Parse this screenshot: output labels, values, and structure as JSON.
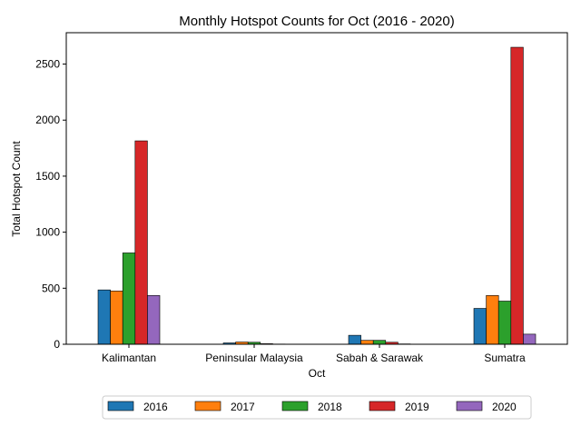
{
  "chart_data": {
    "type": "bar",
    "title": "Monthly Hotspot Counts for Oct (2016 - 2020)",
    "xlabel": "Oct",
    "ylabel": "Total Hotspot Count",
    "categories": [
      "Kalimantan",
      "Peninsular Malaysia",
      "Sabah & Sarawak",
      "Sumatra"
    ],
    "ylim": [
      0,
      2780
    ],
    "yticks": [
      0,
      500,
      1000,
      1500,
      2000,
      2500
    ],
    "grid": false,
    "legend_position": "bottom-center",
    "series": [
      {
        "name": "2016",
        "color": "#1f77b4",
        "values": [
          485,
          12,
          80,
          320
        ]
      },
      {
        "name": "2017",
        "color": "#ff7f0e",
        "values": [
          475,
          20,
          35,
          435
        ]
      },
      {
        "name": "2018",
        "color": "#2ca02c",
        "values": [
          815,
          18,
          35,
          385
        ]
      },
      {
        "name": "2019",
        "color": "#d62728",
        "values": [
          1815,
          5,
          18,
          2650
        ]
      },
      {
        "name": "2020",
        "color": "#9467bd",
        "values": [
          435,
          2,
          3,
          90
        ]
      }
    ]
  }
}
